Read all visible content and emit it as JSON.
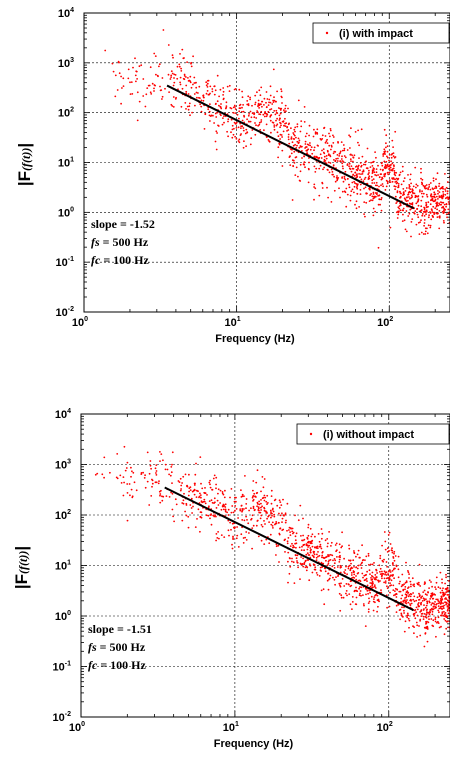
{
  "chart_data": [
    {
      "type": "scatter",
      "xscale": "log",
      "yscale": "log",
      "xlim": [
        1,
        250
      ],
      "ylim": [
        0.01,
        10000
      ],
      "xticks": [
        1,
        10,
        100
      ],
      "yticks": [
        0.01,
        0.1,
        1,
        10,
        100,
        1000,
        10000
      ],
      "xlabel": "Frequency (Hz)",
      "ylabel": "|F(f(t))|",
      "ylabel_main": "|F",
      "ylabel_inner": "(f(t))",
      "ylabel_close": "|",
      "grid": true,
      "legend_position": "top-right",
      "series": [
        {
          "name": "(i) with impact",
          "color": "#ff0000"
        }
      ],
      "fit_line": {
        "x": [
          3.5,
          145
        ],
        "y": [
          350,
          1.2
        ],
        "color": "#000000"
      },
      "annotations": {
        "slope": "slope = -1.52",
        "fs_symbol": "fs",
        "fs_value": " = 500 Hz",
        "fc_symbol": "fc",
        "fc_value": " = 100 Hz"
      }
    },
    {
      "type": "scatter",
      "xscale": "log",
      "yscale": "log",
      "xlim": [
        1,
        250
      ],
      "ylim": [
        0.01,
        10000
      ],
      "xticks": [
        1,
        10,
        100
      ],
      "yticks": [
        0.01,
        0.1,
        1,
        10,
        100,
        1000,
        10000
      ],
      "xlabel": "Frequency (Hz)",
      "ylabel": "|F(f(t))|",
      "ylabel_main": "|F",
      "ylabel_inner": "(f(t))",
      "ylabel_close": "|",
      "grid": true,
      "legend_position": "top-right",
      "series": [
        {
          "name": "(i) without impact",
          "color": "#ff0000"
        }
      ],
      "fit_line": {
        "x": [
          3.5,
          145
        ],
        "y": [
          350,
          1.3
        ],
        "color": "#000000"
      },
      "annotations": {
        "slope": "slope = -1.51",
        "fs_symbol": "fs",
        "fs_value": " = 500 Hz",
        "fc_symbol": "fc",
        "fc_value": " = 100 Hz"
      }
    }
  ]
}
